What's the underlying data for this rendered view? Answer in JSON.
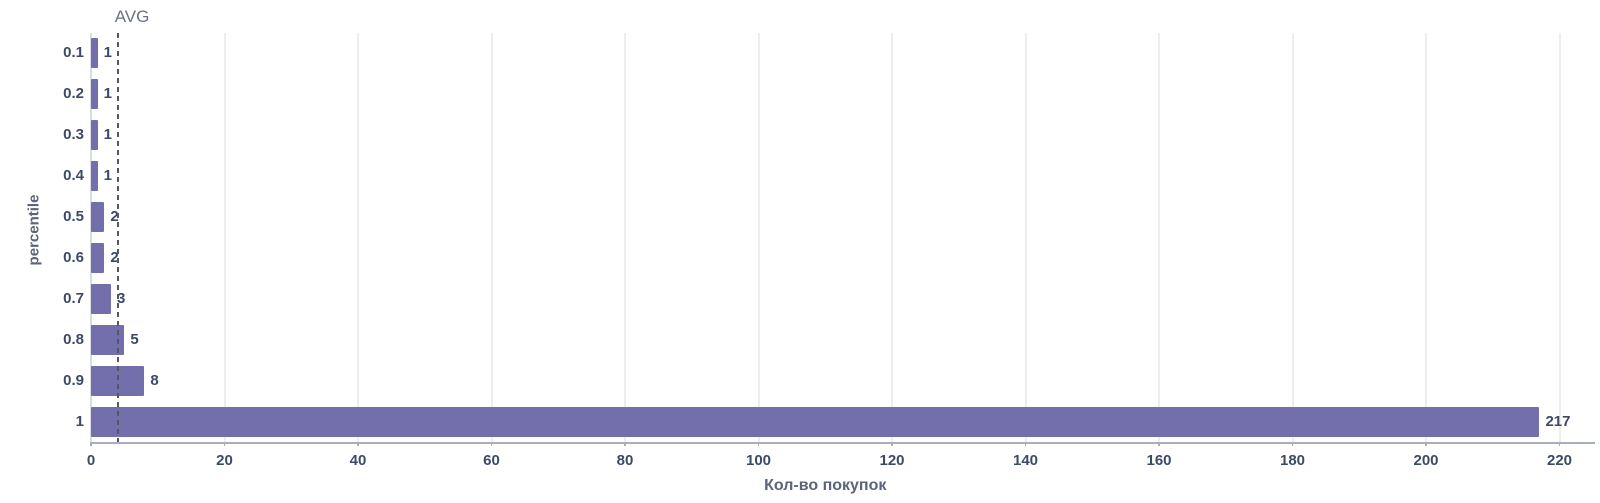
{
  "chart_data": {
    "type": "bar",
    "orientation": "horizontal",
    "categories": [
      "0.1",
      "0.2",
      "0.3",
      "0.4",
      "0.5",
      "0.6",
      "0.7",
      "0.8",
      "0.9",
      "1"
    ],
    "values": [
      1,
      1,
      1,
      1,
      2,
      2,
      3,
      5,
      8,
      217
    ],
    "value_labels": [
      "1",
      "1",
      "1",
      "1",
      "2",
      "2",
      "3",
      "5",
      "8",
      "217"
    ],
    "xlabel": "Кол-во покупок",
    "ylabel": "percentile",
    "x_ticks": [
      0,
      20,
      40,
      60,
      80,
      100,
      120,
      140,
      160,
      180,
      200,
      220
    ],
    "xlim": [
      0,
      225
    ],
    "grid": "vertical-only",
    "legend": "none",
    "avg_line": {
      "label": "AVG",
      "value": 4
    }
  },
  "colors": {
    "bar": "#726FAC",
    "tick_text": "#3D4A66",
    "value_text": "#3D4A66",
    "axis_title_text": "#5B6478",
    "avg_text": "#6B7280",
    "avg_line": "#55585E",
    "gridline": "#EDEDED",
    "x_axis_line": "#A7AFBC",
    "y_axis_line": "#D8DCE3",
    "background": "#FFFFFF"
  }
}
